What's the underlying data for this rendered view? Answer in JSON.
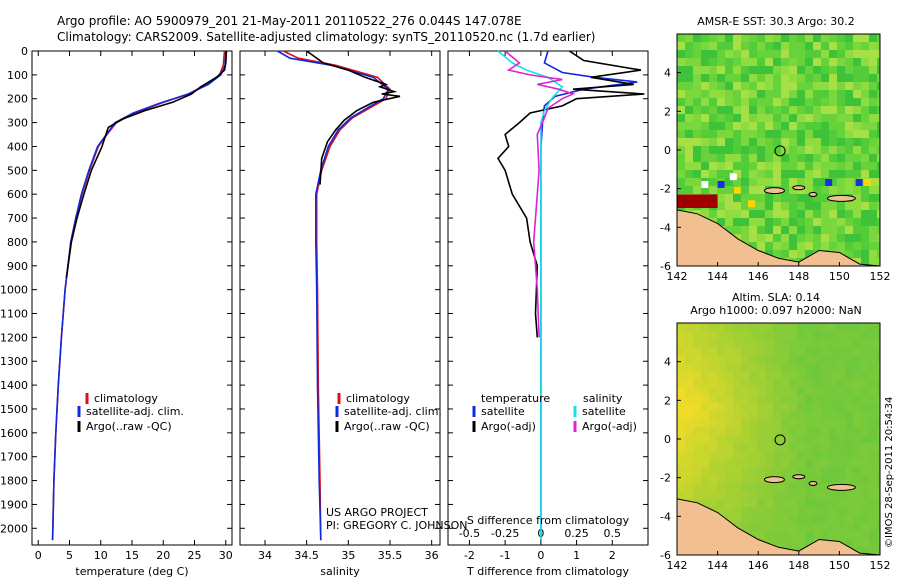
{
  "header": {
    "line1": "Argo profile: AO 5900979_201 21-May-2011 20110522_276 0.044S 147.078E",
    "line2": "Climatology: CARS2009. Satellite-adjusted climatology: synTS_20110520.nc (1.7d earlier)"
  },
  "credit": {
    "project": "US ARGO PROJECT",
    "pi": "PI: GREGORY C. JOHNSON"
  },
  "sidebar_stamp": "©IMOS 28-Sep-2011 20:54:34",
  "colors": {
    "climatology": "#e01010",
    "satellite": "#1028e0",
    "argo": "#000000",
    "salinity_satellite": "#18e0e8",
    "salinity_argo": "#e020d8",
    "land": "#f2c090"
  },
  "chart_data": [
    {
      "type": "line",
      "id": "temperature-profile",
      "xlabel": "temperature (deg C)",
      "ylabel": "",
      "xlim": [
        -1,
        31
      ],
      "ylim": [
        2070,
        0
      ],
      "xticks": [
        0,
        5,
        10,
        15,
        20,
        25,
        30
      ],
      "yticks": [
        0,
        100,
        200,
        300,
        400,
        500,
        600,
        700,
        800,
        900,
        1000,
        1100,
        1200,
        1300,
        1400,
        1500,
        1600,
        1700,
        1800,
        1900,
        2000
      ],
      "legend": [
        "climatology",
        "satellite-adj. clim.",
        "Argo(..raw -QC)"
      ],
      "series": [
        {
          "name": "climatology",
          "x": [
            29.8,
            29.6,
            29.0,
            27.0,
            24.0,
            19.5,
            15.5,
            12.5,
            11.0,
            9.6,
            8.2,
            7.0,
            6.0,
            5.2,
            4.3,
            3.7,
            3.2,
            2.8,
            2.5,
            2.3
          ],
          "y": [
            0,
            60,
            100,
            140,
            180,
            220,
            260,
            300,
            350,
            400,
            500,
            600,
            700,
            800,
            1000,
            1200,
            1400,
            1600,
            1800,
            2050
          ]
        },
        {
          "name": "satellite-adj. clim.",
          "x": [
            30.0,
            29.9,
            29.2,
            27.2,
            24.0,
            19.3,
            15.2,
            12.3,
            10.9,
            9.5,
            8.1,
            6.9,
            6.0,
            5.2,
            4.3,
            3.7,
            3.2,
            2.8,
            2.5,
            2.3
          ],
          "y": [
            0,
            60,
            100,
            140,
            180,
            220,
            260,
            300,
            350,
            400,
            500,
            600,
            700,
            800,
            1000,
            1200,
            1400,
            1600,
            1800,
            2050
          ]
        },
        {
          "name": "Argo(..raw -QC)",
          "x": [
            30.1,
            30.0,
            29.8,
            28.5,
            26.0,
            24.5,
            21.5,
            17.0,
            13.5,
            11.2,
            10.2,
            8.5,
            7.3,
            6.2,
            5.3,
            4.5
          ],
          "y": [
            0,
            50,
            80,
            110,
            150,
            180,
            215,
            250,
            285,
            320,
            400,
            500,
            600,
            700,
            800,
            950
          ]
        }
      ]
    },
    {
      "type": "line",
      "id": "salinity-profile",
      "xlabel": "salinity",
      "xlim": [
        33.7,
        36.1
      ],
      "ylim": [
        2070,
        0
      ],
      "xticks": [
        34,
        34.5,
        35,
        35.5,
        36
      ],
      "legend": [
        "climatology",
        "satellite-adj. clim.",
        "Argo(..raw -QC)"
      ],
      "series": [
        {
          "name": "climatology",
          "x": [
            34.22,
            34.4,
            34.85,
            35.35,
            35.5,
            35.45,
            35.25,
            35.05,
            34.9,
            34.78,
            34.68,
            34.62,
            34.62,
            34.63,
            34.64,
            34.66,
            34.67
          ],
          "y": [
            0,
            30,
            60,
            110,
            160,
            200,
            240,
            280,
            330,
            400,
            500,
            600,
            800,
            1000,
            1400,
            1800,
            2050
          ]
        },
        {
          "name": "satellite-adj. clim.",
          "x": [
            34.15,
            34.3,
            34.8,
            35.3,
            35.48,
            35.42,
            35.22,
            35.03,
            34.88,
            34.76,
            34.67,
            34.61,
            34.61,
            34.62,
            34.63,
            34.65,
            34.67
          ],
          "y": [
            0,
            30,
            60,
            110,
            160,
            200,
            240,
            280,
            330,
            400,
            500,
            600,
            800,
            1000,
            1400,
            1800,
            2050
          ]
        },
        {
          "name": "Argo(..raw -QC)",
          "x": [
            34.5,
            34.7,
            35.0,
            35.2,
            35.45,
            35.38,
            35.55,
            35.4,
            35.62,
            35.3,
            35.1,
            34.95,
            34.85,
            34.75,
            34.68,
            34.66
          ],
          "y": [
            0,
            50,
            80,
            110,
            140,
            150,
            170,
            180,
            190,
            215,
            250,
            290,
            330,
            380,
            450,
            560
          ]
        }
      ]
    },
    {
      "type": "line",
      "id": "difference-profile",
      "xlabel": "T difference from climatology",
      "xlabel_top": "S difference from climatology",
      "xlim": [
        -2.6,
        3.0
      ],
      "ylim": [
        2070,
        0
      ],
      "xticks": [
        -2,
        -1,
        0,
        1,
        2
      ],
      "xticks_salinity": [
        "-0.5",
        "-0.25",
        "0",
        "0.25",
        "0.5"
      ],
      "xticks_salinity_pos": [
        -2,
        -1,
        0,
        1,
        2
      ],
      "legend_temperature_title": "temperature",
      "legend_salinity_title": "salinity",
      "legend": [
        "satellite",
        "Argo(-adj)",
        "satellite",
        "Argo(-adj)"
      ],
      "series": [
        {
          "name": "temperature satellite",
          "x": [
            0.2,
            0.1,
            0.6,
            1.5,
            2.7,
            1.2,
            0.4,
            0.1,
            0.05,
            0.0,
            0.0,
            0.0,
            0.0,
            0.0
          ],
          "y": [
            0,
            50,
            90,
            110,
            130,
            160,
            190,
            230,
            300,
            400,
            600,
            1000,
            1500,
            2050
          ]
        },
        {
          "name": "temperature Argo(-adj)",
          "x": [
            0.8,
            1.2,
            2.8,
            1.4,
            2.6,
            0.9,
            2.9,
            1.0,
            0.6,
            -0.3,
            -0.6,
            -1.0,
            -0.9,
            -1.2,
            -1.0,
            -0.8,
            -0.4,
            -0.3,
            -0.1,
            -0.15,
            -0.1
          ],
          "y": [
            0,
            40,
            80,
            110,
            140,
            160,
            180,
            200,
            230,
            260,
            300,
            350,
            400,
            450,
            500,
            600,
            700,
            800,
            900,
            1100,
            1200
          ]
        },
        {
          "name": "salinity satellite",
          "x": [
            -1.2,
            -0.8,
            -0.4,
            0.2,
            0.6,
            0.3,
            0.1,
            0.0,
            0.0,
            0.0,
            0.0,
            0.0
          ],
          "y": [
            0,
            50,
            80,
            110,
            150,
            200,
            250,
            300,
            500,
            1000,
            1500,
            2050
          ]
        },
        {
          "name": "salinity Argo(-adj)",
          "x": [
            -1.0,
            -0.6,
            -0.9,
            -0.3,
            0.6,
            -0.1,
            0.5,
            0.9,
            0.6,
            0.4,
            0.2,
            0.1,
            -0.1,
            -0.05,
            -0.1,
            -0.15,
            -0.2,
            -0.1,
            -0.05
          ],
          "y": [
            0,
            50,
            80,
            100,
            120,
            140,
            160,
            180,
            200,
            220,
            240,
            280,
            350,
            500,
            600,
            700,
            800,
            1000,
            1200
          ]
        }
      ]
    },
    {
      "type": "heatmap",
      "id": "sst-map",
      "title": "AMSR-E SST: 30.3 Argo: 30.2",
      "xlim": [
        142,
        152
      ],
      "ylim": [
        -6,
        6
      ],
      "xticks": [
        142,
        144,
        146,
        148,
        150,
        152
      ],
      "yticks": [
        4,
        2,
        0,
        -2,
        -4,
        -6
      ],
      "marker": {
        "lon": 147.078,
        "lat": -0.044
      }
    },
    {
      "type": "heatmap",
      "id": "sla-map",
      "title": "Altim. SLA: 0.14",
      "subtitle": "Argo h1000: 0.097 h2000: NaN",
      "xlim": [
        142,
        152
      ],
      "ylim": [
        -6,
        6
      ],
      "xticks": [
        142,
        144,
        146,
        148,
        150,
        152
      ],
      "yticks": [
        4,
        2,
        0,
        -2,
        -4,
        -6
      ],
      "marker": {
        "lon": 147.078,
        "lat": -0.044
      }
    }
  ]
}
